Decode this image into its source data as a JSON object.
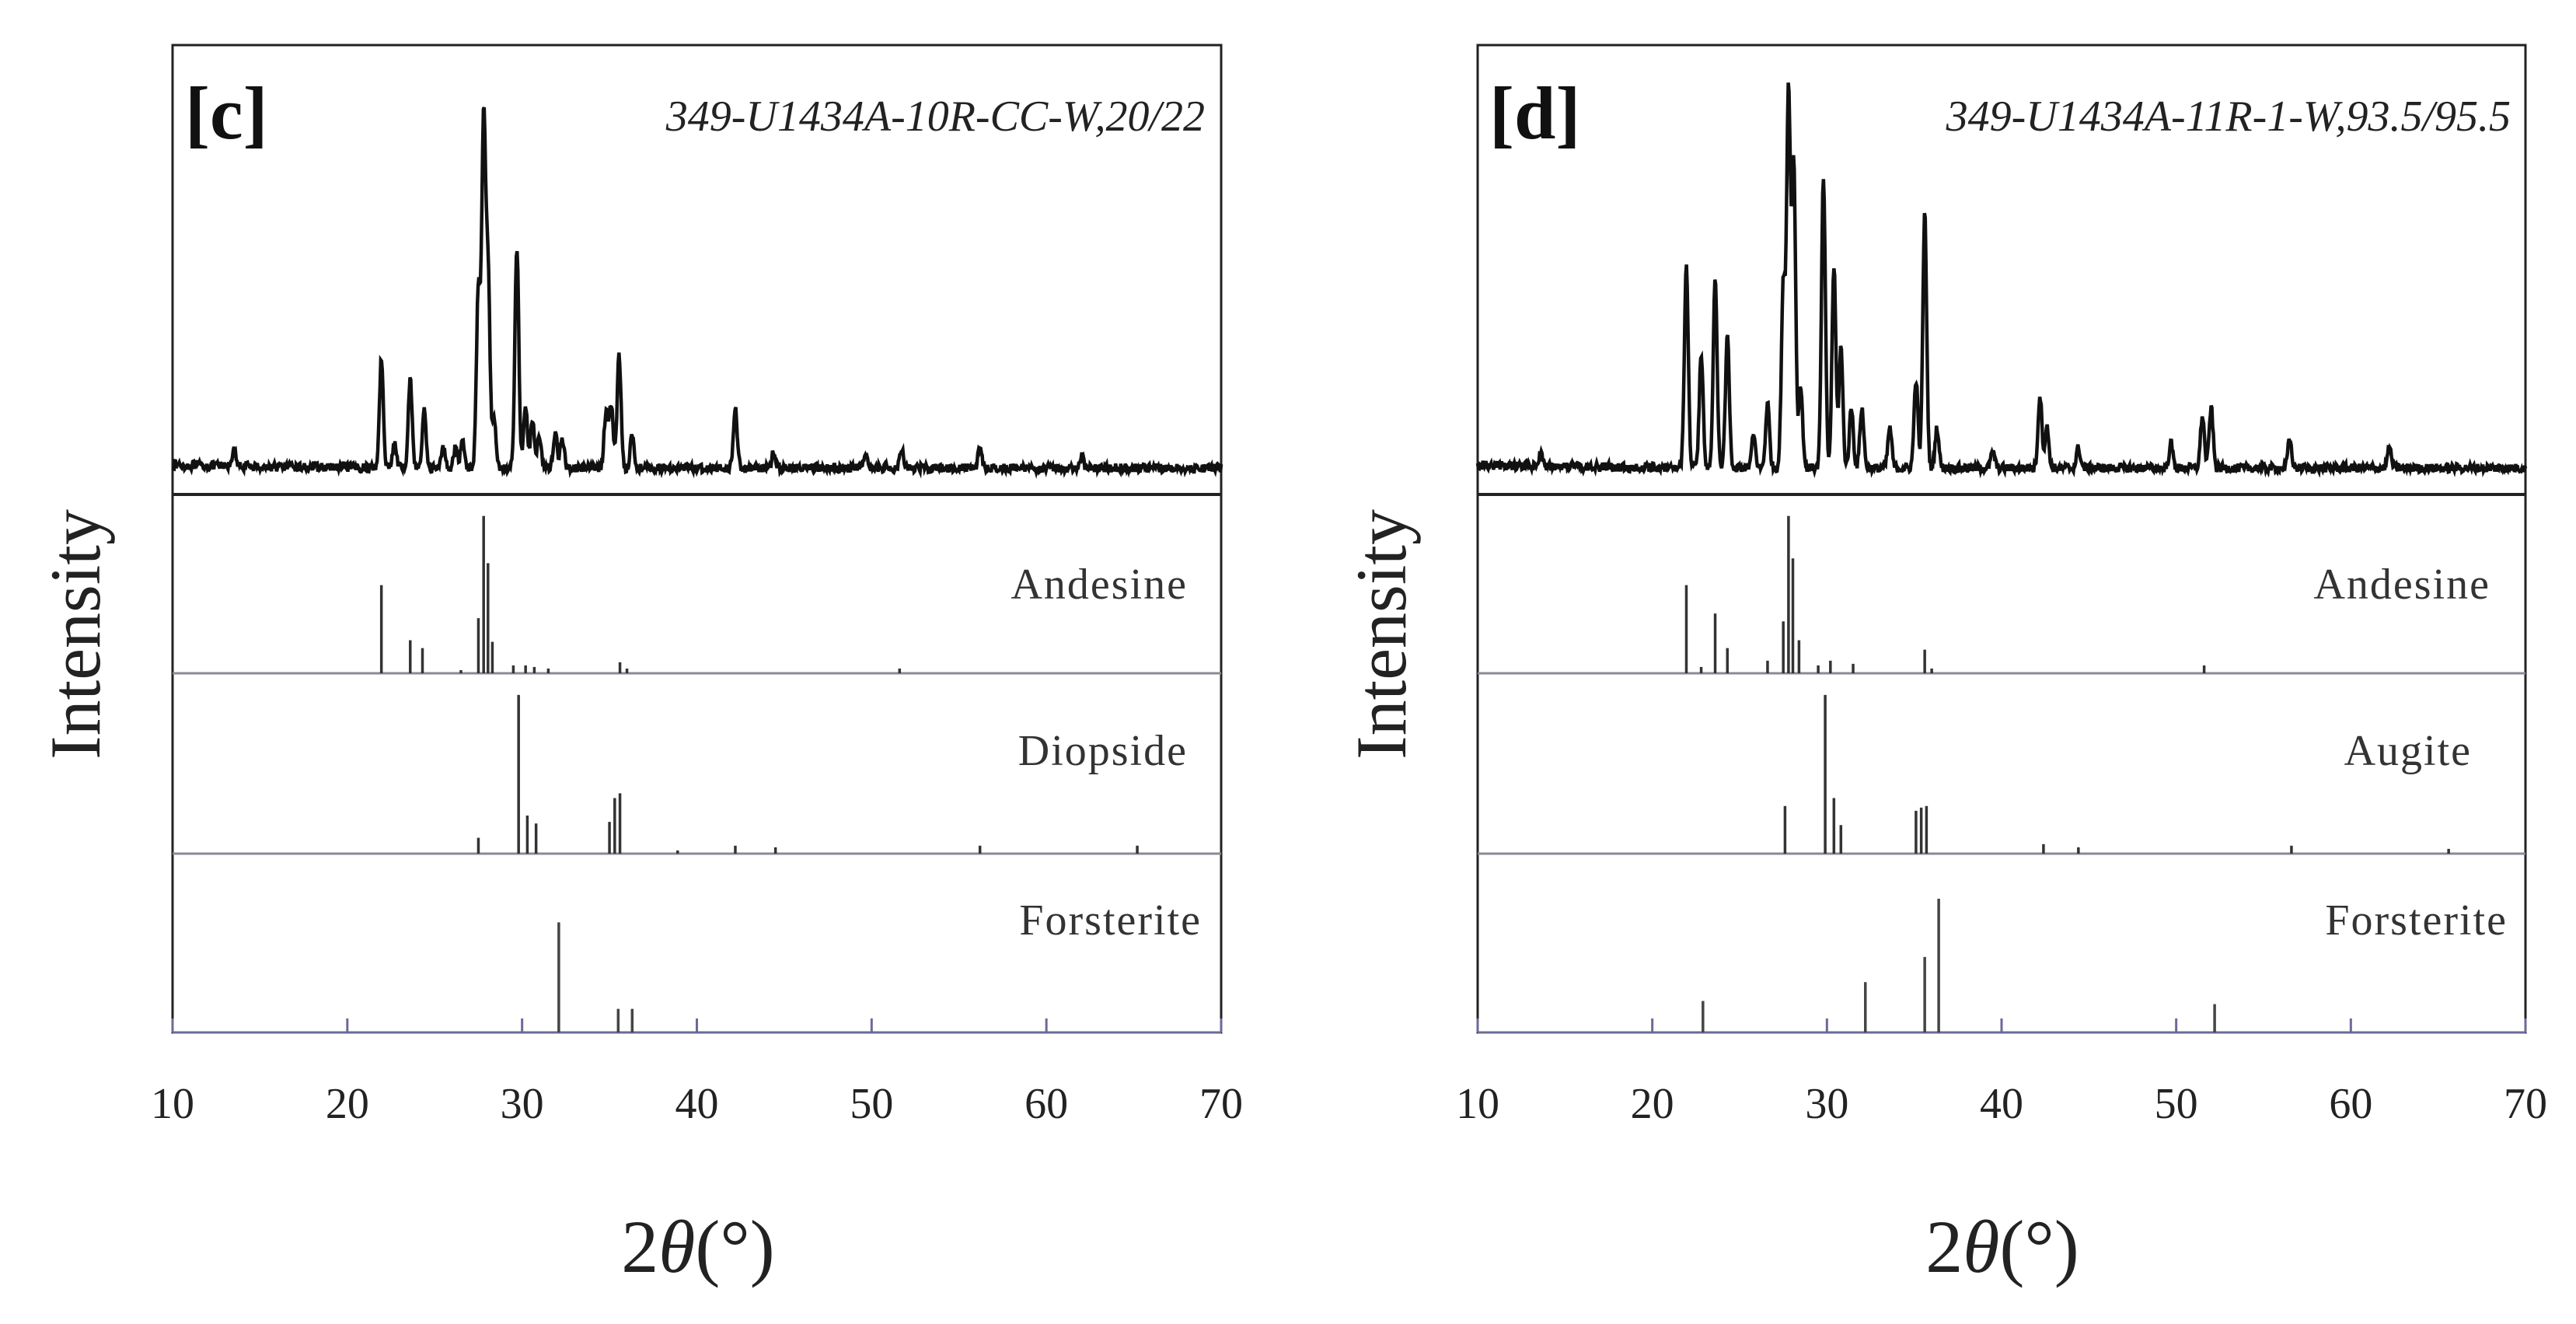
{
  "chart_data": [
    {
      "type": "line",
      "panel_label": "[c]",
      "sample_id": "349-U1434A-10R-CC-W,20/22",
      "xlabel_main": "2",
      "xlabel_sym": "θ",
      "xlabel_unit": "(°)",
      "ylabel": "Intensity",
      "xlim": [
        10,
        70
      ],
      "xticks": [
        "10",
        "20",
        "30",
        "40",
        "50",
        "60",
        "70"
      ],
      "measured_pattern": {
        "baseline": 0.05,
        "peaks": [
          [
            13.5,
            0.04
          ],
          [
            21.95,
            0.27
          ],
          [
            22.7,
            0.06
          ],
          [
            23.6,
            0.22
          ],
          [
            24.4,
            0.14
          ],
          [
            25.5,
            0.05
          ],
          [
            26.2,
            0.05
          ],
          [
            26.6,
            0.07
          ],
          [
            27.5,
            0.45
          ],
          [
            27.8,
            0.86
          ],
          [
            28.05,
            0.48
          ],
          [
            28.4,
            0.12
          ],
          [
            29.7,
            0.55
          ],
          [
            30.2,
            0.15
          ],
          [
            30.6,
            0.12
          ],
          [
            31.0,
            0.08
          ],
          [
            31.9,
            0.09
          ],
          [
            32.3,
            0.07
          ],
          [
            34.8,
            0.14
          ],
          [
            35.1,
            0.16
          ],
          [
            35.55,
            0.28
          ],
          [
            36.3,
            0.08
          ],
          [
            42.2,
            0.15
          ],
          [
            44.4,
            0.04
          ],
          [
            49.7,
            0.03
          ],
          [
            51.7,
            0.05
          ],
          [
            56.2,
            0.05
          ],
          [
            62.0,
            0.03
          ]
        ]
      },
      "references": [
        {
          "name": "Andesine",
          "sticks": [
            [
              21.95,
              0.56
            ],
            [
              23.6,
              0.21
            ],
            [
              24.3,
              0.16
            ],
            [
              26.5,
              0.02
            ],
            [
              27.5,
              0.35
            ],
            [
              27.8,
              1.0
            ],
            [
              28.05,
              0.7
            ],
            [
              28.3,
              0.2
            ],
            [
              29.5,
              0.05
            ],
            [
              30.2,
              0.05
            ],
            [
              30.7,
              0.04
            ],
            [
              31.5,
              0.03
            ],
            [
              35.6,
              0.07
            ],
            [
              36.0,
              0.03
            ],
            [
              51.6,
              0.03
            ]
          ]
        },
        {
          "name": "Diopside",
          "sticks": [
            [
              27.5,
              0.1
            ],
            [
              29.8,
              1.0
            ],
            [
              30.3,
              0.24
            ],
            [
              30.8,
              0.19
            ],
            [
              35.0,
              0.2
            ],
            [
              35.3,
              0.35
            ],
            [
              35.6,
              0.38
            ],
            [
              38.9,
              0.02
            ],
            [
              42.2,
              0.05
            ],
            [
              44.5,
              0.04
            ],
            [
              56.2,
              0.05
            ],
            [
              65.2,
              0.05
            ]
          ]
        },
        {
          "name": "Forsterite",
          "sticks": [
            [
              32.1,
              0.7
            ],
            [
              35.5,
              0.15
            ],
            [
              36.3,
              0.15
            ]
          ]
        }
      ]
    },
    {
      "type": "line",
      "panel_label": "[d]",
      "sample_id": "349-U1434A-11R-1-W,93.5/95.5",
      "xlabel_main": "2",
      "xlabel_sym": "θ",
      "xlabel_unit": "(°)",
      "ylabel": "Intensity",
      "xlim": [
        10,
        70
      ],
      "xticks": [
        "10",
        "20",
        "30",
        "40",
        "50",
        "60",
        "70"
      ],
      "measured_pattern": {
        "baseline": 0.05,
        "peaks": [
          [
            13.6,
            0.03
          ],
          [
            21.95,
            0.5
          ],
          [
            22.8,
            0.28
          ],
          [
            23.6,
            0.47
          ],
          [
            24.3,
            0.33
          ],
          [
            25.8,
            0.08
          ],
          [
            26.6,
            0.16
          ],
          [
            27.5,
            0.45
          ],
          [
            27.8,
            0.93
          ],
          [
            28.1,
            0.75
          ],
          [
            28.5,
            0.2
          ],
          [
            29.8,
            0.72
          ],
          [
            30.4,
            0.5
          ],
          [
            30.8,
            0.3
          ],
          [
            31.4,
            0.15
          ],
          [
            32.0,
            0.15
          ],
          [
            33.6,
            0.1
          ],
          [
            35.1,
            0.22
          ],
          [
            35.6,
            0.63
          ],
          [
            36.3,
            0.1
          ],
          [
            39.5,
            0.04
          ],
          [
            42.2,
            0.18
          ],
          [
            42.6,
            0.1
          ],
          [
            44.4,
            0.05
          ],
          [
            49.7,
            0.06
          ],
          [
            51.5,
            0.13
          ],
          [
            52.0,
            0.15
          ],
          [
            56.5,
            0.07
          ],
          [
            62.2,
            0.05
          ]
        ]
      },
      "references": [
        {
          "name": "Andesine",
          "sticks": [
            [
              21.95,
              0.56
            ],
            [
              22.8,
              0.04
            ],
            [
              23.6,
              0.38
            ],
            [
              24.3,
              0.16
            ],
            [
              26.6,
              0.08
            ],
            [
              27.5,
              0.33
            ],
            [
              27.8,
              1.0
            ],
            [
              28.05,
              0.73
            ],
            [
              28.4,
              0.21
            ],
            [
              29.5,
              0.05
            ],
            [
              30.2,
              0.08
            ],
            [
              31.5,
              0.06
            ],
            [
              35.6,
              0.15
            ],
            [
              36.0,
              0.03
            ],
            [
              51.6,
              0.05
            ]
          ]
        },
        {
          "name": "Augite",
          "sticks": [
            [
              27.6,
              0.3
            ],
            [
              29.9,
              1.0
            ],
            [
              30.4,
              0.35
            ],
            [
              30.8,
              0.18
            ],
            [
              35.1,
              0.27
            ],
            [
              35.4,
              0.29
            ],
            [
              35.7,
              0.3
            ],
            [
              42.4,
              0.06
            ],
            [
              44.4,
              0.04
            ],
            [
              56.6,
              0.05
            ],
            [
              65.6,
              0.03
            ]
          ]
        },
        {
          "name": "Forsterite",
          "sticks": [
            [
              22.9,
              0.2
            ],
            [
              32.2,
              0.32
            ],
            [
              35.6,
              0.48
            ],
            [
              36.4,
              0.85
            ],
            [
              52.2,
              0.18
            ]
          ]
        }
      ]
    }
  ]
}
